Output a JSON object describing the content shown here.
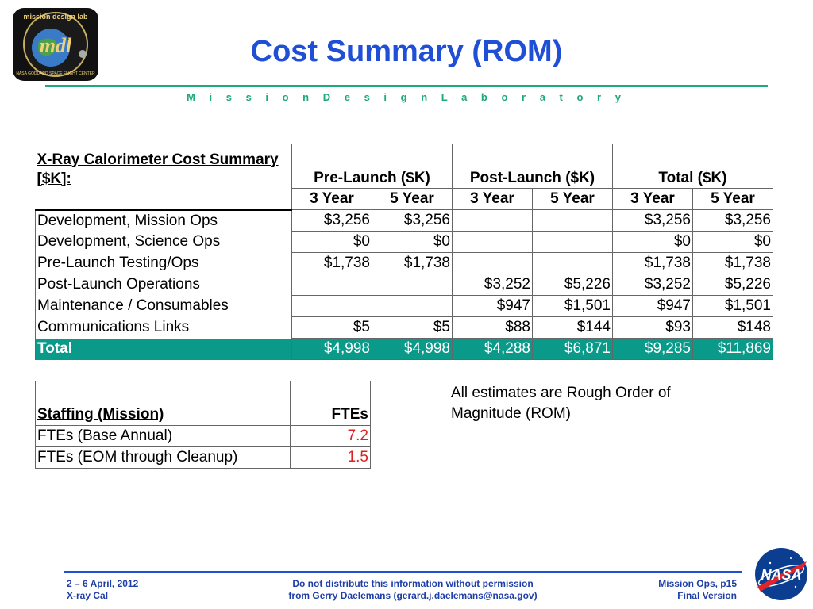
{
  "logo": {
    "ring_text": "mission design lab",
    "center_text": "mdl",
    "bottom_text": "NASA GODDARD SPACE FLIGHT CENTER"
  },
  "header": {
    "title": "Cost Summary (ROM)",
    "subtitle": "M i s s i o n   D e s i g n   L a b o r a t o r y"
  },
  "cost_table": {
    "title": "X-Ray Calorimeter Cost Summary [$K]:",
    "groups": [
      "Pre-Launch ($K)",
      "Post-Launch ($K)",
      "Total ($K)"
    ],
    "years": [
      "3 Year",
      "5 Year",
      "3 Year",
      "5 Year",
      "3 Year",
      "5 Year"
    ],
    "rows": [
      {
        "label": "Development, Mission Ops",
        "values": [
          "$3,256",
          "$3,256",
          "",
          "",
          "$3,256",
          "$3,256"
        ]
      },
      {
        "label": "Development, Science Ops",
        "values": [
          "$0",
          "$0",
          "",
          "",
          "$0",
          "$0"
        ]
      },
      {
        "label": "Pre-Launch Testing/Ops",
        "values": [
          "$1,738",
          "$1,738",
          "",
          "",
          "$1,738",
          "$1,738"
        ]
      },
      {
        "label": "Post-Launch Operations",
        "values": [
          "",
          "",
          "$3,252",
          "$5,226",
          "$3,252",
          "$5,226"
        ]
      },
      {
        "label": "Maintenance / Consumables",
        "values": [
          "",
          "",
          "$947",
          "$1,501",
          "$947",
          "$1,501"
        ]
      },
      {
        "label": "Communications Links",
        "values": [
          "$5",
          "$5",
          "$88",
          "$144",
          "$93",
          "$148"
        ]
      },
      {
        "label": "Total",
        "values": [
          "$4,998",
          "$4,998",
          "$4,288",
          "$6,871",
          "$9,285",
          "$11,869"
        ]
      }
    ],
    "total_color": "#0a9a8a"
  },
  "staff_table": {
    "header_label": "Staffing (Mission)",
    "header_value": "FTEs",
    "rows": [
      {
        "label": "FTEs (Base Annual)",
        "value": "7.2"
      },
      {
        "label": "FTEs (EOM through Cleanup)",
        "value": "1.5"
      }
    ]
  },
  "note": "All estimates are Rough Order of Magnitude (ROM)",
  "footer": {
    "left_line1": "2 – 6 April, 2012",
    "left_line2": "X-ray Cal",
    "center_line1": "Do not distribute this information without permission",
    "center_line2": "from Gerry Daelemans (gerard.j.daelemans@nasa.gov)",
    "right_line1": "Mission Ops, p15",
    "right_line2": "Final Version"
  },
  "nasa_logo": {
    "text": "NASA"
  },
  "colors": {
    "title_blue": "#1f4fd6",
    "accent_green": "#1fa87a",
    "value_red": "#e02020"
  }
}
